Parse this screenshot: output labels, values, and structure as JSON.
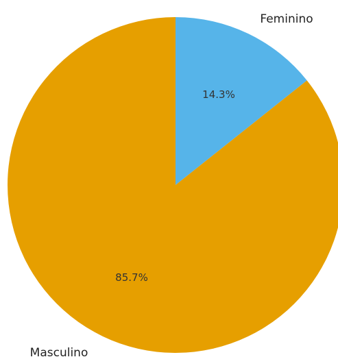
{
  "chart_data": {
    "type": "pie",
    "title": "",
    "slices": [
      {
        "label": "Feminino",
        "value": 14.3,
        "pct_label": "14.3%",
        "color": "#56b4e9"
      },
      {
        "label": "Masculino",
        "value": 85.7,
        "pct_label": "85.7%",
        "color": "#e69f00"
      }
    ],
    "start_angle": "12 o'clock",
    "direction": "clockwise",
    "legend": "none"
  }
}
